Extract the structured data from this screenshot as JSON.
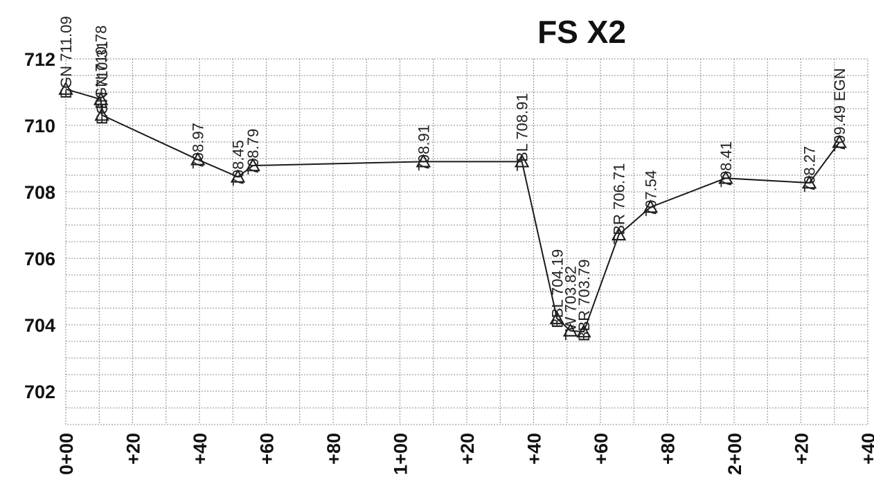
{
  "chart_data": {
    "type": "line",
    "title": "FS X2",
    "xlabel": "",
    "ylabel": "",
    "xlim": [
      0,
      240
    ],
    "ylim": [
      701,
      712
    ],
    "grid": true,
    "y_ticks": [
      {
        "value": 702,
        "label": "702"
      },
      {
        "value": 704,
        "label": "704"
      },
      {
        "value": 706,
        "label": "706"
      },
      {
        "value": 708,
        "label": "708"
      },
      {
        "value": 710,
        "label": "710"
      },
      {
        "value": 712,
        "label": "712"
      }
    ],
    "x_ticks": [
      {
        "value": 0,
        "label": "0+00"
      },
      {
        "value": 20,
        "label": "+20"
      },
      {
        "value": 40,
        "label": "+40"
      },
      {
        "value": 60,
        "label": "+60"
      },
      {
        "value": 80,
        "label": "+80"
      },
      {
        "value": 100,
        "label": "1+00"
      },
      {
        "value": 120,
        "label": "+20"
      },
      {
        "value": 140,
        "label": "+40"
      },
      {
        "value": 160,
        "label": "+60"
      },
      {
        "value": 180,
        "label": "+80"
      },
      {
        "value": 200,
        "label": "2+00"
      },
      {
        "value": 220,
        "label": "+20"
      },
      {
        "value": 240,
        "label": "+40"
      }
    ],
    "series": [
      {
        "points": [
          {
            "x": 0,
            "y": 711.09,
            "label": "EGN 711.09"
          },
          {
            "x": 10.5,
            "y": 710.78,
            "label": "EGN 710.78"
          },
          {
            "x": 10.8,
            "y": 710.31,
            "label": "EGN 710.31"
          },
          {
            "x": 39.5,
            "y": 708.97,
            "label": "708.97"
          },
          {
            "x": 51.5,
            "y": 708.45,
            "label": "708.45"
          },
          {
            "x": 56,
            "y": 708.79,
            "label": "708.79"
          },
          {
            "x": 107,
            "y": 708.91,
            "label": "708.91"
          },
          {
            "x": 136.5,
            "y": 708.91,
            "label": "TBL 708.91"
          },
          {
            "x": 147,
            "y": 704.19,
            "label": "BBL 704.19"
          },
          {
            "x": 151,
            "y": 703.82,
            "label": "TW 703.82"
          },
          {
            "x": 155,
            "y": 703.79,
            "label": "BBR 703.79"
          },
          {
            "x": 165.5,
            "y": 706.71,
            "label": "TBR 706.71"
          },
          {
            "x": 175,
            "y": 707.54,
            "label": "707.54"
          },
          {
            "x": 197.5,
            "y": 708.41,
            "label": "708.41"
          },
          {
            "x": 222.5,
            "y": 708.27,
            "label": "708.27"
          },
          {
            "x": 231.5,
            "y": 709.49,
            "label": "709.49 EGN"
          }
        ]
      }
    ]
  }
}
